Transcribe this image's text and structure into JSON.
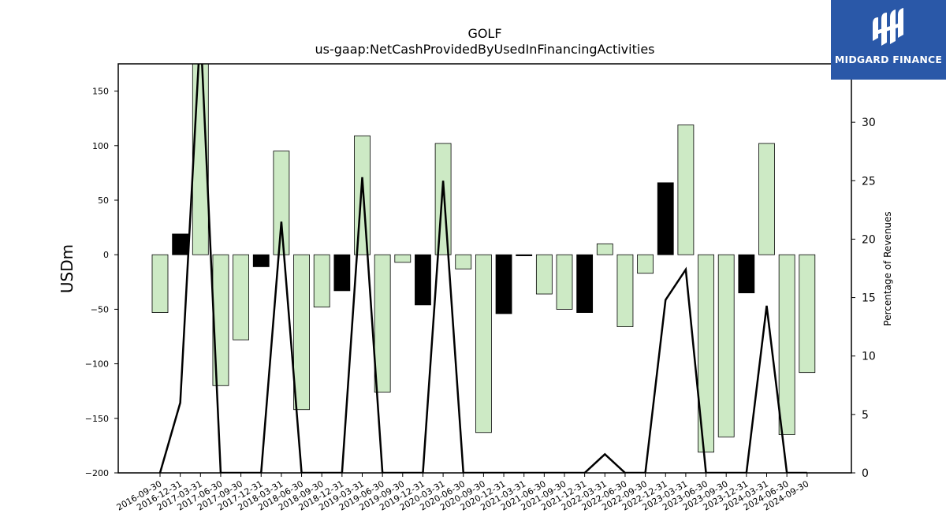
{
  "brand": {
    "name": "MIDGARD FINANCE",
    "icon": "midgard-logo-icon",
    "color": "#2a58a8"
  },
  "chart_data": {
    "type": "bar",
    "title": "GOLF",
    "subtitle": "us-gaap:NetCashProvidedByUsedInFinancingActivities",
    "ylabel": "USDm",
    "y2label": "Percentage of Revenues",
    "ylim": [
      -200,
      175
    ],
    "y2lim": [
      0,
      35
    ],
    "yticks": [
      -200,
      -150,
      -100,
      -50,
      0,
      50,
      100,
      150
    ],
    "y2ticks": [
      0,
      5,
      10,
      15,
      20,
      25,
      30
    ],
    "ytick_labels": [
      "−200",
      "−150",
      "−100",
      "−50",
      "0",
      "50",
      "100",
      "150"
    ],
    "y2tick_labels": [
      "0",
      "5",
      "10",
      "15",
      "20",
      "25",
      "30"
    ],
    "categories": [
      "2016-09-30",
      "2016-12-31",
      "2017-03-31",
      "2017-06-30",
      "2017-09-30",
      "2017-12-31",
      "2018-03-31",
      "2018-06-30",
      "2018-09-30",
      "2018-12-31",
      "2019-03-31",
      "2019-06-30",
      "2019-09-30",
      "2019-12-31",
      "2020-03-31",
      "2020-06-30",
      "2020-09-30",
      "2020-12-31",
      "2021-03-31",
      "2021-06-30",
      "2021-09-30",
      "2021-12-31",
      "2022-03-31",
      "2022-06-30",
      "2022-09-30",
      "2022-12-31",
      "2023-03-31",
      "2023-06-30",
      "2023-09-30",
      "2023-12-31",
      "2024-03-31",
      "2024-06-30",
      "2024-09-30"
    ],
    "series": [
      {
        "values": [
          -53,
          19,
          185,
          -120,
          -78,
          -11,
          95,
          -142,
          -48,
          -33,
          109,
          -126,
          -7,
          -46,
          102,
          -13,
          -163,
          -54,
          -1,
          -36,
          -50,
          -53,
          10,
          -66,
          -17,
          66,
          119,
          -181,
          -167,
          -35,
          102,
          -165,
          -108
        ],
        "color_positive_change": "#cdeac5",
        "color_negative_change": "#000000"
      },
      {
        "type": "line",
        "values": [
          0,
          6,
          38,
          0,
          0,
          0,
          21.5,
          0,
          0,
          0,
          25.3,
          0,
          0,
          0,
          25,
          0,
          0,
          0,
          0,
          0,
          0,
          0,
          1.6,
          0,
          0,
          14.8,
          17.4,
          0,
          0,
          0,
          14.3,
          0,
          0
        ],
        "color": "#000000"
      }
    ],
    "bar_colors": [
      "light",
      "dark",
      "light",
      "light",
      "light",
      "dark",
      "light",
      "light",
      "light",
      "dark",
      "light",
      "light",
      "light",
      "dark",
      "light",
      "light",
      "light",
      "dark",
      "dark",
      "light",
      "light",
      "dark",
      "light",
      "light",
      "light",
      "dark",
      "light",
      "light",
      "light",
      "dark",
      "light",
      "light",
      "light"
    ],
    "colors": {
      "light": "#cdeac5",
      "dark": "#000000"
    },
    "grid": false
  }
}
